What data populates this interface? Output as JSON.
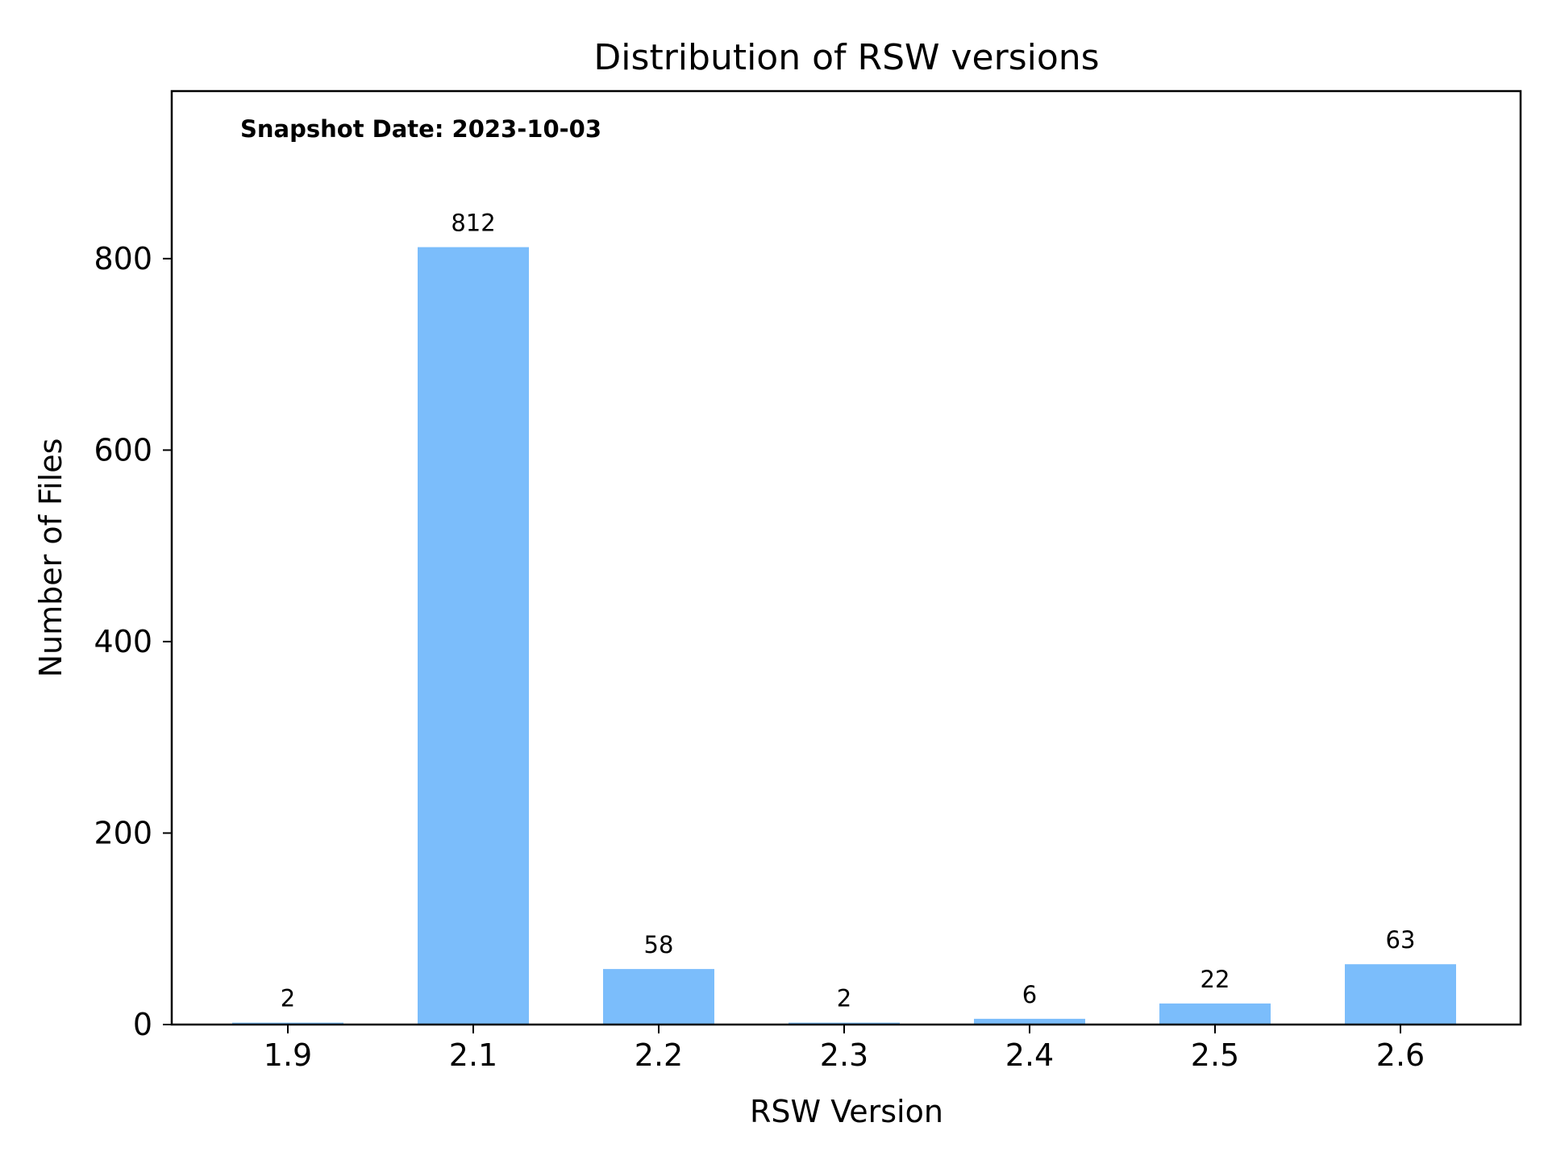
{
  "chart_data": {
    "type": "bar",
    "title": "Distribution of RSW versions",
    "xlabel": "RSW Version",
    "ylabel": "Number of Files",
    "annotation": "Snapshot Date: 2023-10-03",
    "categories": [
      "1.9",
      "2.1",
      "2.2",
      "2.3",
      "2.4",
      "2.5",
      "2.6"
    ],
    "values": [
      2,
      812,
      58,
      2,
      6,
      22,
      63
    ],
    "data_labels": [
      "2",
      "812",
      "58",
      "2",
      "6",
      "22",
      "63"
    ],
    "ylim": [
      0,
      975
    ],
    "yticks": [
      0,
      200,
      400,
      600,
      800
    ],
    "ytick_labels": [
      "0",
      "200",
      "400",
      "600",
      "800"
    ],
    "grid": false,
    "bar_color": "#7bbdfb"
  }
}
